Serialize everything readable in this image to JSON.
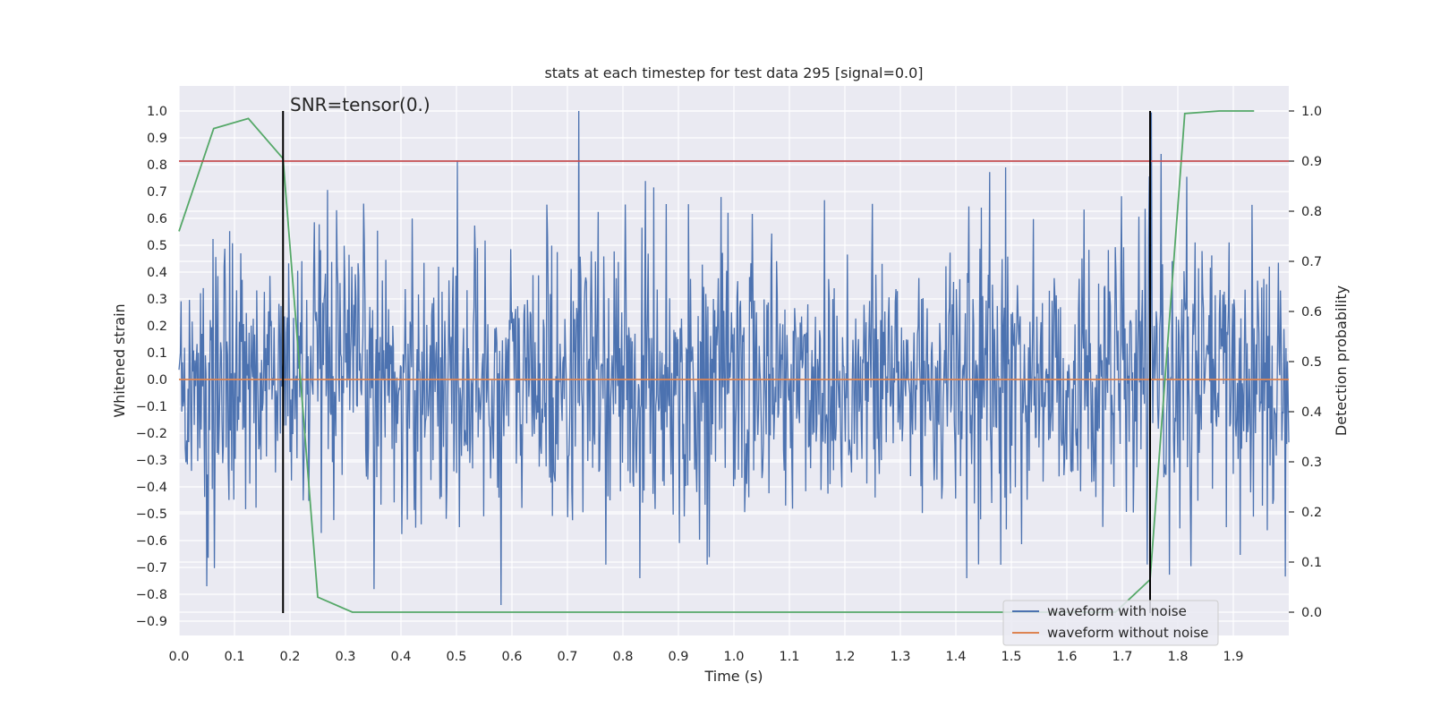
{
  "chart_data": {
    "type": "line",
    "title": "stats at each timestep for test data 295 [signal=0.0]",
    "xlabel": "Time (s)",
    "ylabel": "Whitened strain",
    "y2label": "Detection probability",
    "annotation": "SNR=tensor(0.)",
    "xlim": [
      0.0,
      2.0
    ],
    "ylim": [
      -0.97,
      1.1
    ],
    "y2lim": [
      -0.045,
      1.045
    ],
    "xticks": [
      "0.0",
      "0.1",
      "0.2",
      "0.3",
      "0.4",
      "0.5",
      "0.6",
      "0.7",
      "0.8",
      "0.9",
      "1.0",
      "1.1",
      "1.2",
      "1.3",
      "1.4",
      "1.5",
      "1.6",
      "1.7",
      "1.8",
      "1.9"
    ],
    "yticks": [
      "1.0",
      "0.9",
      "0.8",
      "0.7",
      "0.6",
      "0.5",
      "0.4",
      "0.3",
      "0.2",
      "0.1",
      "0.0",
      "-0.1",
      "-0.2",
      "-0.3",
      "-0.4",
      "-0.5",
      "-0.6",
      "-0.7",
      "-0.8",
      "-0.9"
    ],
    "y2ticks": [
      "1.0",
      "0.9",
      "0.8",
      "0.7",
      "0.6",
      "0.5",
      "0.4",
      "0.3",
      "0.2",
      "0.1",
      "0.0"
    ],
    "grid": true,
    "legend_position": "lower-right",
    "series": [
      {
        "name": "waveform with noise",
        "color": "#4c72b0",
        "axis": "left",
        "noise_sample_count": 1600,
        "approx_range": [
          -0.85,
          1.0
        ],
        "notable_peaks": [
          {
            "x": 0.58,
            "y": 0.82
          },
          {
            "x": 0.58,
            "y": -0.84
          },
          {
            "x": 0.72,
            "y": 1.0
          },
          {
            "x": 0.83,
            "y": 0.92
          },
          {
            "x": 0.83,
            "y": -0.74
          },
          {
            "x": 1.49,
            "y": 0.79
          },
          {
            "x": 1.77,
            "y": 0.84
          },
          {
            "x": 0.05,
            "y": -0.77
          },
          {
            "x": 1.42,
            "y": -0.74
          }
        ]
      },
      {
        "name": "waveform without noise",
        "color": "#dd8452",
        "axis": "left",
        "x": [
          0.0,
          2.0
        ],
        "y": [
          0.0,
          0.0
        ]
      },
      {
        "color": "#55a868",
        "axis": "right",
        "x": [
          0.0,
          0.0625,
          0.125,
          0.1875,
          0.25,
          0.3125,
          0.375,
          0.4375,
          0.5,
          0.5625,
          0.625,
          0.6875,
          0.75,
          0.8125,
          0.875,
          0.9375,
          1.0,
          1.0625,
          1.125,
          1.1875,
          1.25,
          1.3125,
          1.375,
          1.4375,
          1.5,
          1.5625,
          1.625,
          1.6875,
          1.75,
          1.8125,
          1.875,
          1.9375
        ],
        "y": [
          0.76,
          0.965,
          0.985,
          0.905,
          0.03,
          0.0,
          0.0,
          0.0,
          0.0,
          0.0,
          0.0,
          0.0,
          0.0,
          0.0,
          0.0,
          0.0,
          0.0,
          0.0,
          0.0,
          0.0,
          0.0,
          0.0,
          0.0,
          0.0,
          0.0,
          0.0,
          0.0,
          0.0,
          0.065,
          0.995,
          1.0,
          1.0
        ]
      },
      {
        "color": "#c44e52",
        "axis": "right",
        "x": [
          0.0,
          2.0
        ],
        "y": [
          0.9,
          0.9
        ]
      }
    ],
    "vlines": [
      {
        "x": 0.1875,
        "color": "#000000"
      },
      {
        "x": 1.75,
        "color": "#000000"
      }
    ]
  }
}
